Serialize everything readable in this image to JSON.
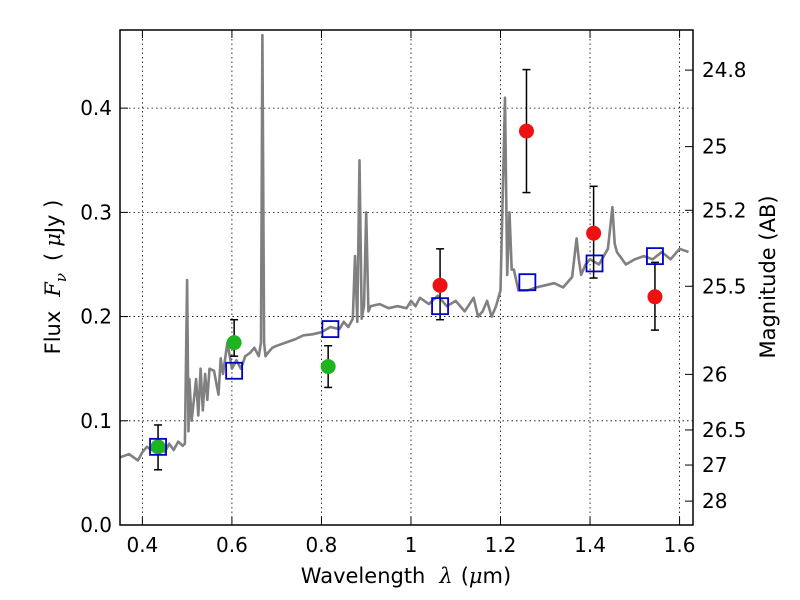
{
  "chart_data": {
    "type": "scatter",
    "xlabel_text": "Wavelength",
    "xlabel_symbol": "λ",
    "xlabel_unit_open": "(",
    "xlabel_unit_mu": "μ",
    "xlabel_unit_rest": "m)",
    "ylabel_text": "Flux",
    "ylabel_symbol": "F",
    "ylabel_subscript": "ν",
    "ylabel_unit_open": "(",
    "ylabel_unit_mu": "μ",
    "ylabel_unit_rest": "Jy )",
    "y2label": "Magnitude (AB)",
    "xlim": [
      0.35,
      1.63
    ],
    "ylim": [
      0.0,
      0.475
    ],
    "grid": true,
    "x_ticks": [
      {
        "value": 0.4,
        "label": "0.4"
      },
      {
        "value": 0.6,
        "label": "0.6"
      },
      {
        "value": 0.8,
        "label": "0.8"
      },
      {
        "value": 1.0,
        "label": "1"
      },
      {
        "value": 1.2,
        "label": "1.2"
      },
      {
        "value": 1.4,
        "label": "1.4"
      },
      {
        "value": 1.6,
        "label": "1.6"
      }
    ],
    "y_ticks": [
      {
        "value": 0.0,
        "label": "0.0"
      },
      {
        "value": 0.1,
        "label": "0.1"
      },
      {
        "value": 0.2,
        "label": "0.2"
      },
      {
        "value": 0.3,
        "label": "0.3"
      },
      {
        "value": 0.4,
        "label": "0.4"
      }
    ],
    "y2_ticks": [
      {
        "mag": 24.8,
        "label": "24.8"
      },
      {
        "mag": 25.0,
        "label": "25"
      },
      {
        "mag": 25.2,
        "label": "25.2"
      },
      {
        "mag": 25.5,
        "label": "25.5"
      },
      {
        "mag": 26.0,
        "label": "26"
      },
      {
        "mag": 26.5,
        "label": "26.5"
      },
      {
        "mag": 27.0,
        "label": "27"
      },
      {
        "mag": 28.0,
        "label": "28"
      }
    ],
    "series": [
      {
        "name": "model-spectrum",
        "kind": "line",
        "color": "#808080",
        "x": [
          0.35,
          0.37,
          0.39,
          0.4,
          0.41,
          0.42,
          0.43,
          0.44,
          0.45,
          0.46,
          0.47,
          0.48,
          0.49,
          0.495,
          0.5,
          0.503,
          0.505,
          0.51,
          0.515,
          0.52,
          0.525,
          0.53,
          0.535,
          0.54,
          0.545,
          0.55,
          0.56,
          0.57,
          0.575,
          0.58,
          0.59,
          0.6,
          0.61,
          0.62,
          0.63,
          0.64,
          0.65,
          0.66,
          0.665,
          0.668,
          0.672,
          0.675,
          0.68,
          0.69,
          0.7,
          0.72,
          0.74,
          0.76,
          0.78,
          0.8,
          0.82,
          0.84,
          0.85,
          0.86,
          0.87,
          0.875,
          0.88,
          0.885,
          0.89,
          0.895,
          0.9,
          0.905,
          0.91,
          0.93,
          0.95,
          0.97,
          0.99,
          1.0,
          1.01,
          1.02,
          1.04,
          1.06,
          1.08,
          1.1,
          1.12,
          1.14,
          1.15,
          1.16,
          1.17,
          1.18,
          1.19,
          1.2,
          1.21,
          1.215,
          1.22,
          1.225,
          1.23,
          1.24,
          1.26,
          1.28,
          1.3,
          1.32,
          1.34,
          1.36,
          1.37,
          1.375,
          1.38,
          1.39,
          1.4,
          1.42,
          1.44,
          1.45,
          1.455,
          1.46,
          1.48,
          1.5,
          1.52,
          1.54,
          1.56,
          1.58,
          1.6,
          1.62
        ],
        "y": [
          0.065,
          0.068,
          0.062,
          0.07,
          0.075,
          0.072,
          0.078,
          0.074,
          0.07,
          0.078,
          0.072,
          0.08,
          0.076,
          0.078,
          0.235,
          0.09,
          0.14,
          0.1,
          0.12,
          0.14,
          0.105,
          0.15,
          0.11,
          0.145,
          0.12,
          0.15,
          0.148,
          0.125,
          0.16,
          0.145,
          0.175,
          0.15,
          0.158,
          0.15,
          0.162,
          0.165,
          0.17,
          0.162,
          0.175,
          0.47,
          0.175,
          0.162,
          0.165,
          0.17,
          0.172,
          0.175,
          0.178,
          0.182,
          0.183,
          0.185,
          0.19,
          0.188,
          0.195,
          0.19,
          0.198,
          0.258,
          0.195,
          0.35,
          0.198,
          0.21,
          0.3,
          0.205,
          0.21,
          0.212,
          0.208,
          0.21,
          0.208,
          0.215,
          0.21,
          0.218,
          0.212,
          0.22,
          0.21,
          0.215,
          0.205,
          0.218,
          0.2,
          0.205,
          0.215,
          0.2,
          0.21,
          0.225,
          0.41,
          0.24,
          0.3,
          0.245,
          0.245,
          0.225,
          0.225,
          0.228,
          0.23,
          0.232,
          0.228,
          0.238,
          0.275,
          0.255,
          0.24,
          0.25,
          0.255,
          0.25,
          0.265,
          0.305,
          0.27,
          0.262,
          0.25,
          0.255,
          0.258,
          0.255,
          0.262,
          0.255,
          0.265,
          0.262
        ]
      },
      {
        "name": "green-photometry",
        "kind": "points",
        "color": "#1fb41f",
        "x": [
          0.435,
          0.605,
          0.815
        ],
        "y": [
          0.075,
          0.175,
          0.152
        ],
        "err_low": [
          0.053,
          0.162,
          0.132
        ],
        "err_high": [
          0.096,
          0.197,
          0.172
        ]
      },
      {
        "name": "red-photometry",
        "kind": "points",
        "color": "#ee1111",
        "x": [
          1.065,
          1.258,
          1.408,
          1.545
        ],
        "y": [
          0.23,
          0.378,
          0.28,
          0.219
        ],
        "err_low": [
          0.197,
          0.319,
          0.237,
          0.187
        ],
        "err_high": [
          0.265,
          0.437,
          0.325,
          0.252
        ]
      },
      {
        "name": "model-magnitudes",
        "kind": "squares",
        "color": "#0000cc",
        "x": [
          0.435,
          0.605,
          0.82,
          1.065,
          1.26,
          1.41,
          1.545
        ],
        "y": [
          0.075,
          0.148,
          0.188,
          0.21,
          0.233,
          0.251,
          0.258
        ]
      }
    ]
  }
}
